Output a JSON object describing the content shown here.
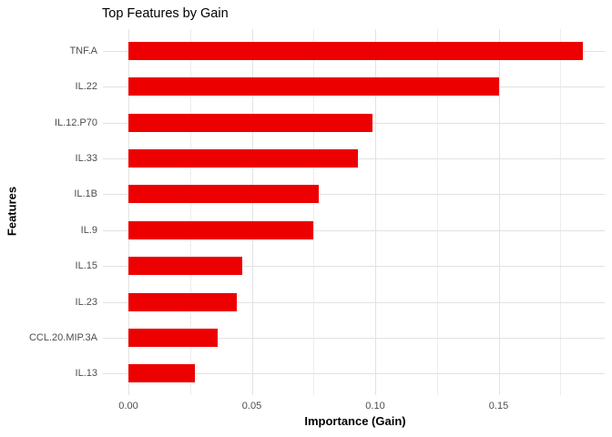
{
  "chart_data": {
    "type": "bar",
    "orientation": "horizontal",
    "title": "Top Features by Gain",
    "xlabel": "Importance (Gain)",
    "ylabel": "Features",
    "categories": [
      "TNF.A",
      "IL.22",
      "IL.12.P70",
      "IL.33",
      "IL.1B",
      "IL.9",
      "IL.15",
      "IL.23",
      "CCL.20.MIP.3A",
      "IL.13"
    ],
    "values": [
      0.184,
      0.15,
      0.099,
      0.093,
      0.077,
      0.075,
      0.046,
      0.044,
      0.036,
      0.027
    ],
    "x_tick_labels": [
      "0.00",
      "0.05",
      "0.10",
      "0.15"
    ],
    "x_tick_values": [
      0,
      0.05,
      0.1,
      0.15
    ],
    "x_minor_tick_values": [
      0.025,
      0.075,
      0.125,
      0.175
    ],
    "xlim": [
      0,
      0.193
    ],
    "grid": true,
    "legend": false,
    "colors": {
      "bar": "#ec0000",
      "grid_major": "#e2e2e2",
      "grid_minor": "#ededed",
      "tick_label": "#4d4d4d",
      "title": "#000000",
      "background": "#ffffff"
    }
  }
}
